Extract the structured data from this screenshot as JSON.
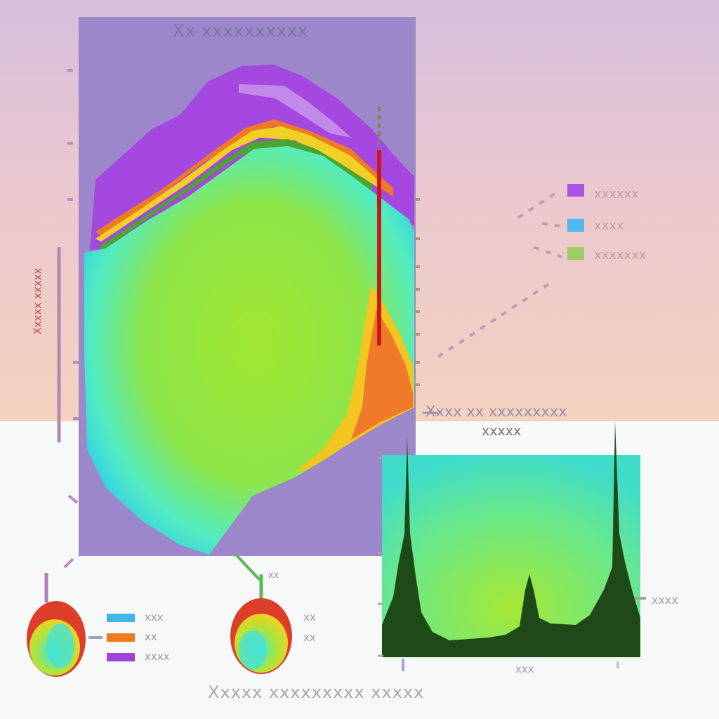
{
  "diagram": {
    "panel_title": "Xx xxxxxxxxxx",
    "y_axis_label": "Xxxxx xxxxx",
    "legend": [
      {
        "label": "xxxxxx",
        "color": "#a855e0"
      },
      {
        "label": "xxxx",
        "color": "#4fb8ec"
      },
      {
        "label": "xxxxxxx",
        "color": "#9ccf63"
      }
    ],
    "inset": {
      "title_line1": "Xxxx xx xxxxxxxxx",
      "title_line2": "xxxxx",
      "peak_label": "xxxx",
      "x_tick": "xxx"
    },
    "small_legend": [
      {
        "label": "xxx",
        "color": "#3fb5e8"
      },
      {
        "label": "xx",
        "color": "#ee7a22"
      },
      {
        "label": "xxxx",
        "color": "#9b44d8"
      }
    ],
    "small_tags": [
      "xx",
      "xx"
    ],
    "pointer_label": "xx",
    "caption": "Xxxxx xxxxxxxxx xxxxx"
  }
}
